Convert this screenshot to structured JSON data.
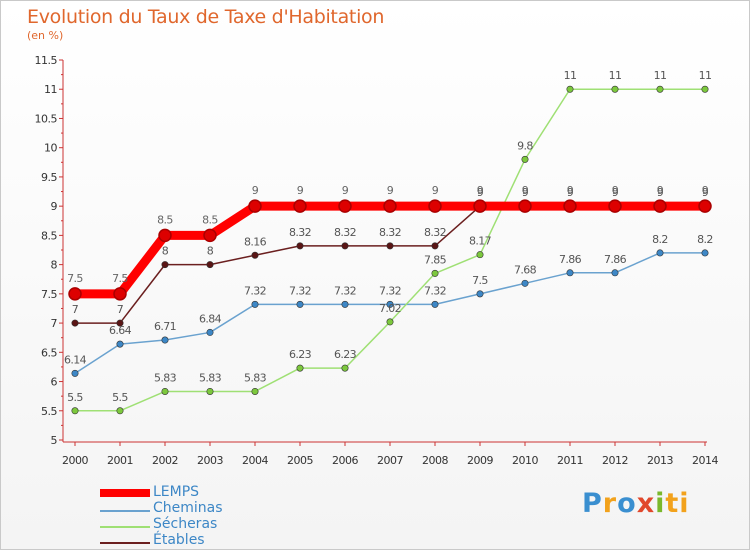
{
  "header": {
    "title": "Evolution du Taux de Taxe d'Habitation",
    "subtitle": "(en %)"
  },
  "logo": {
    "text": "Proxiti",
    "letters": [
      "P",
      "r",
      "o",
      "x",
      "i",
      "ti"
    ]
  },
  "chart_data": {
    "type": "line",
    "title": "Evolution du Taux de Taxe d'Habitation",
    "subtitle": "(en %)",
    "xlabel": "",
    "ylabel": "",
    "x": [
      "2000",
      "2001",
      "2002",
      "2003",
      "2004",
      "2005",
      "2006",
      "2007",
      "2008",
      "2009",
      "2010",
      "2011",
      "2012",
      "2013",
      "2014"
    ],
    "ylim": [
      5,
      11.5
    ],
    "yticks": [
      "5",
      "5.5",
      "6",
      "6.5",
      "7",
      "7.5",
      "8",
      "8.5",
      "9",
      "9.5",
      "10",
      "10.5",
      "11",
      "11.5"
    ],
    "grid": false,
    "legend_position": "bottom-left",
    "series": [
      {
        "name": "LEMPS",
        "color": "#ff0000",
        "point_color": "#dd0000",
        "label_color": "#666666",
        "values": [
          7.5,
          7.5,
          8.5,
          8.5,
          9,
          9,
          9,
          9,
          9,
          9,
          9,
          9,
          9,
          9,
          9
        ],
        "labels": [
          "7.5",
          "7.5",
          "8.5",
          "8.5",
          "9",
          "9",
          "9",
          "9",
          "9",
          "9",
          "9",
          "9",
          "9",
          "9",
          "9"
        ]
      },
      {
        "name": "Cheminas",
        "color": "#6aa2cf",
        "point_color": "#3d87c6",
        "label_color": "#555555",
        "values": [
          6.14,
          6.64,
          6.71,
          6.84,
          7.32,
          7.32,
          7.32,
          7.32,
          7.32,
          7.5,
          7.68,
          7.86,
          7.86,
          8.2,
          8.2
        ],
        "labels": [
          "6.14",
          "6.64",
          "6.71",
          "6.84",
          "7.32",
          "7.32",
          "7.32",
          "7.32",
          "7.32",
          "7.5",
          "7.68",
          "7.86",
          "7.86",
          "8.2",
          "8.2"
        ]
      },
      {
        "name": "Sécheras",
        "color": "#9fe074",
        "point_color": "#7cc83d",
        "label_color": "#555555",
        "values": [
          5.5,
          5.5,
          5.83,
          5.83,
          5.83,
          6.23,
          6.23,
          7.02,
          7.85,
          8.17,
          9.8,
          11,
          11,
          11,
          11
        ],
        "labels": [
          "5.5",
          "5.5",
          "5.83",
          "5.83",
          "5.83",
          "6.23",
          "6.23",
          "7.02",
          "7.85",
          "8.17",
          "9.8",
          "11",
          "11",
          "11",
          "11"
        ]
      },
      {
        "name": "Étables",
        "color": "#6b1f1f",
        "point_color": "#5a1515",
        "label_color": "#555555",
        "values": [
          7,
          7,
          8,
          8,
          8.16,
          8.32,
          8.32,
          8.32,
          8.32,
          9,
          9,
          9,
          9,
          9,
          9
        ],
        "labels": [
          "7",
          "7",
          "8",
          "8",
          "8.16",
          "8.32",
          "8.32",
          "8.32",
          "8.32",
          "9",
          "9",
          "9",
          "9",
          "9",
          "9"
        ]
      }
    ]
  }
}
